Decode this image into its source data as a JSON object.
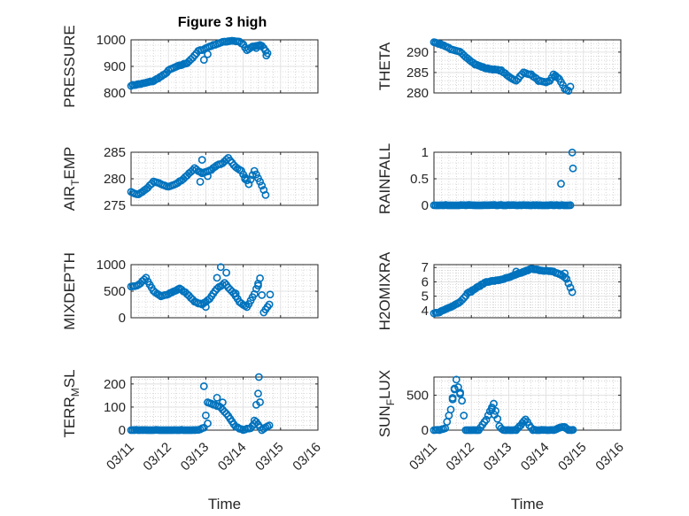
{
  "figure": {
    "title": "Figure 3 high",
    "marker_color": "#0072BD"
  },
  "chart_data": [
    {
      "type": "scatter",
      "panel": "PRESSURE",
      "title": "Figure 3 high",
      "xlabel": "",
      "ylabel": "PRESSURE",
      "ylabel_sub": "",
      "xlim": [
        0,
        5
      ],
      "ylim": [
        800,
        1000
      ],
      "yticks": [
        800,
        900,
        1000
      ],
      "yticklabels": [
        "800",
        "900",
        "1000"
      ],
      "grid": true,
      "minor_grid": true,
      "anchors": [
        [
          0,
          828
        ],
        [
          0.3,
          835
        ],
        [
          0.6,
          845
        ],
        [
          0.9,
          870
        ],
        [
          1.0,
          885
        ],
        [
          1.2,
          898
        ],
        [
          1.5,
          913
        ],
        [
          1.7,
          940
        ],
        [
          1.8,
          958
        ],
        [
          1.95,
          965
        ],
        [
          2.1,
          975
        ],
        [
          2.3,
          985
        ],
        [
          2.5,
          993
        ],
        [
          2.7,
          997
        ],
        [
          2.9,
          993
        ],
        [
          3.0,
          982
        ],
        [
          3.1,
          960
        ],
        [
          3.25,
          975
        ],
        [
          3.5,
          978
        ],
        [
          3.65,
          950
        ]
      ],
      "extras": [
        [
          1.95,
          925
        ],
        [
          2.05,
          945
        ],
        [
          3.35,
          968
        ],
        [
          3.45,
          982
        ],
        [
          3.62,
          940
        ]
      ]
    },
    {
      "type": "scatter",
      "panel": "THETA",
      "xlabel": "",
      "ylabel": "THETA",
      "ylabel_sub": "",
      "xlim": [
        0,
        5
      ],
      "ylim": [
        280,
        293
      ],
      "yticks": [
        280,
        285,
        290
      ],
      "yticklabels": [
        "280",
        "285",
        "290"
      ],
      "grid": true,
      "minor_grid": true,
      "anchors": [
        [
          0,
          292.5
        ],
        [
          0.3,
          291.5
        ],
        [
          0.5,
          290.5
        ],
        [
          0.7,
          290
        ],
        [
          0.9,
          288.5
        ],
        [
          1.1,
          287
        ],
        [
          1.4,
          286
        ],
        [
          1.8,
          285.5
        ],
        [
          2.0,
          284
        ],
        [
          2.2,
          283
        ],
        [
          2.4,
          285
        ],
        [
          2.6,
          284.5
        ],
        [
          2.8,
          283
        ],
        [
          3.0,
          282.5
        ],
        [
          3.1,
          283
        ],
        [
          3.2,
          284.5
        ],
        [
          3.35,
          283.5
        ],
        [
          3.5,
          281
        ],
        [
          3.6,
          280.5
        ]
      ],
      "extras": [
        [
          3.65,
          281.5
        ],
        [
          3.25,
          284
        ]
      ]
    },
    {
      "type": "scatter",
      "panel": "AIR_TEMP",
      "xlabel": "",
      "ylabel": "AIR",
      "ylabel_sub": "T",
      "ylabel_rest": "EMP",
      "xlim": [
        0,
        5
      ],
      "ylim": [
        275,
        285
      ],
      "yticks": [
        275,
        280,
        285
      ],
      "yticklabels": [
        "275",
        "280",
        "285"
      ],
      "grid": true,
      "minor_grid": true,
      "anchors": [
        [
          0,
          277.5
        ],
        [
          0.2,
          277
        ],
        [
          0.4,
          278
        ],
        [
          0.6,
          279.5
        ],
        [
          0.8,
          279
        ],
        [
          1.0,
          278.5
        ],
        [
          1.2,
          279
        ],
        [
          1.4,
          280
        ],
        [
          1.55,
          281
        ],
        [
          1.7,
          282
        ],
        [
          1.9,
          281
        ],
        [
          2.1,
          281.5
        ],
        [
          2.3,
          282.5
        ],
        [
          2.45,
          283
        ],
        [
          2.6,
          284
        ],
        [
          2.75,
          282.5
        ],
        [
          2.95,
          281.5
        ],
        [
          3.15,
          279
        ],
        [
          3.3,
          281.5
        ],
        [
          3.45,
          279.5
        ],
        [
          3.6,
          277
        ]
      ],
      "extras": [
        [
          1.9,
          283.5
        ],
        [
          2.05,
          280.5
        ],
        [
          1.85,
          279.5
        ],
        [
          3.05,
          280
        ]
      ]
    },
    {
      "type": "scatter",
      "panel": "RAINFALL",
      "xlabel": "",
      "ylabel": "RAINFALL",
      "ylabel_sub": "",
      "xlim": [
        0,
        5
      ],
      "ylim": [
        0,
        1
      ],
      "yticks": [
        0,
        0.5,
        1
      ],
      "yticklabels": [
        "0",
        "0.5",
        "1"
      ],
      "grid": true,
      "minor_grid": true,
      "anchors": [
        [
          0,
          0
        ],
        [
          3.65,
          0
        ]
      ],
      "extras": [
        [
          3.4,
          0.4
        ],
        [
          3.7,
          1.0
        ],
        [
          3.72,
          0.7
        ]
      ]
    },
    {
      "type": "scatter",
      "panel": "MIXDEPTH",
      "xlabel": "",
      "ylabel": "MIXDEPTH",
      "ylabel_sub": "",
      "xlim": [
        0,
        5
      ],
      "ylim": [
        0,
        1000
      ],
      "yticks": [
        0,
        500,
        1000
      ],
      "yticklabels": [
        "0",
        "500",
        "1000"
      ],
      "grid": true,
      "minor_grid": true,
      "anchors": [
        [
          0,
          580
        ],
        [
          0.2,
          620
        ],
        [
          0.4,
          750
        ],
        [
          0.6,
          500
        ],
        [
          0.8,
          400
        ],
        [
          1.0,
          450
        ],
        [
          1.3,
          550
        ],
        [
          1.5,
          450
        ],
        [
          1.7,
          300
        ],
        [
          1.9,
          250
        ],
        [
          2.1,
          350
        ],
        [
          2.3,
          550
        ],
        [
          2.5,
          650
        ],
        [
          2.7,
          500
        ],
        [
          2.9,
          300
        ],
        [
          3.1,
          200
        ],
        [
          3.3,
          450
        ],
        [
          3.45,
          750
        ],
        [
          3.55,
          100
        ],
        [
          3.7,
          250
        ]
      ],
      "extras": [
        [
          2.4,
          950
        ],
        [
          2.55,
          850
        ],
        [
          2.3,
          750
        ],
        [
          2.8,
          450
        ],
        [
          3.4,
          600
        ],
        [
          3.72,
          430
        ],
        [
          2.0,
          200
        ]
      ]
    },
    {
      "type": "scatter",
      "panel": "H2OMIXRA",
      "xlabel": "",
      "ylabel": "H2OMIXRA",
      "ylabel_sub": "",
      "xlim": [
        0,
        5
      ],
      "ylim": [
        3.5,
        7.2
      ],
      "yticks": [
        4,
        5,
        6,
        7
      ],
      "yticklabels": [
        "4",
        "5",
        "6",
        "7"
      ],
      "grid": true,
      "minor_grid": true,
      "anchors": [
        [
          0,
          3.8
        ],
        [
          0.15,
          3.9
        ],
        [
          0.4,
          4.2
        ],
        [
          0.7,
          4.6
        ],
        [
          0.9,
          5.2
        ],
        [
          1.15,
          5.6
        ],
        [
          1.4,
          6.0
        ],
        [
          1.7,
          6.1
        ],
        [
          2.0,
          6.3
        ],
        [
          2.3,
          6.6
        ],
        [
          2.6,
          6.9
        ],
        [
          2.9,
          6.8
        ],
        [
          3.2,
          6.7
        ],
        [
          3.4,
          6.5
        ],
        [
          3.55,
          6.2
        ],
        [
          3.7,
          5.3
        ]
      ],
      "extras": [
        [
          1.0,
          5.3
        ],
        [
          2.2,
          6.7
        ],
        [
          3.5,
          6.6
        ]
      ]
    },
    {
      "type": "scatter",
      "panel": "TERR_MSL",
      "xlabel": "Time",
      "ylabel": "TERR",
      "ylabel_sub": "M",
      "ylabel_rest": "SL",
      "xlim": [
        0,
        5
      ],
      "ylim": [
        0,
        230
      ],
      "yticks": [
        0,
        100,
        200
      ],
      "yticklabels": [
        "0",
        "100",
        "200"
      ],
      "grid": true,
      "minor_grid": true,
      "xticks": [
        0,
        1,
        2,
        3,
        4,
        5
      ],
      "xticklabels": [
        "03/11",
        "03/12",
        "03/13",
        "03/14",
        "03/15",
        "03/16"
      ],
      "anchors": [
        [
          0,
          0
        ],
        [
          1.8,
          0
        ],
        [
          1.95,
          10
        ],
        [
          2.05,
          120
        ],
        [
          2.2,
          110
        ],
        [
          2.4,
          100
        ],
        [
          2.6,
          60
        ],
        [
          2.8,
          15
        ],
        [
          3.0,
          0
        ],
        [
          3.2,
          10
        ],
        [
          3.35,
          35
        ],
        [
          3.5,
          0
        ],
        [
          3.7,
          20
        ]
      ],
      "extras": [
        [
          1.95,
          190
        ],
        [
          2.05,
          30
        ],
        [
          2.3,
          140
        ],
        [
          2.45,
          120
        ],
        [
          3.35,
          110
        ],
        [
          3.4,
          160
        ],
        [
          3.45,
          120
        ],
        [
          3.42,
          230
        ],
        [
          3.3,
          40
        ]
      ]
    },
    {
      "type": "scatter",
      "panel": "SUN_FLUX",
      "xlabel": "Time",
      "ylabel": "SUN",
      "ylabel_sub": "F",
      "ylabel_rest": "LUX",
      "xlim": [
        0,
        5
      ],
      "ylim": [
        0,
        760
      ],
      "yticks": [
        0,
        500
      ],
      "yticklabels": [
        "0",
        "500"
      ],
      "grid": true,
      "minor_grid": true,
      "xticks": [
        0,
        1,
        2,
        3,
        4,
        5
      ],
      "xticklabels": [
        "03/11",
        "03/12",
        "03/13",
        "03/14",
        "03/15",
        "03/16"
      ],
      "anchors": [
        [
          0,
          0
        ],
        [
          0.15,
          0
        ],
        [
          0.3,
          30
        ],
        [
          0.45,
          300
        ],
        [
          0.6,
          720
        ],
        [
          0.75,
          420
        ],
        [
          0.85,
          0
        ],
        [
          1.2,
          0
        ],
        [
          1.4,
          150
        ],
        [
          1.6,
          380
        ],
        [
          1.75,
          60
        ],
        [
          1.85,
          0
        ],
        [
          2.2,
          0
        ],
        [
          2.45,
          150
        ],
        [
          2.65,
          0
        ],
        [
          3.2,
          0
        ],
        [
          3.45,
          50
        ],
        [
          3.6,
          0
        ],
        [
          3.72,
          0
        ]
      ],
      "extras": [
        [
          0.55,
          600
        ],
        [
          0.7,
          540
        ],
        [
          0.5,
          460
        ],
        [
          1.55,
          300
        ],
        [
          1.62,
          220
        ],
        [
          3.5,
          40
        ]
      ]
    }
  ],
  "panels_layout_ref": "grid-4x2"
}
